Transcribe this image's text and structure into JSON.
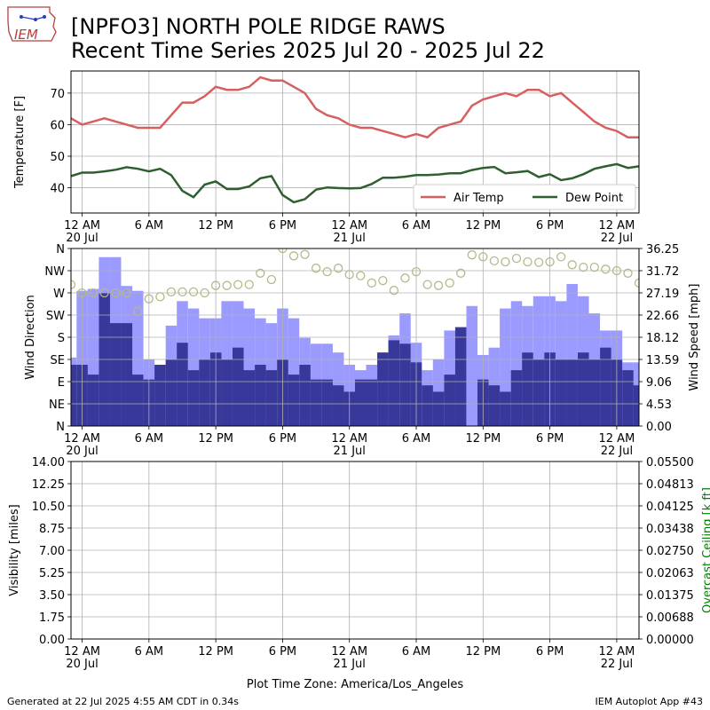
{
  "logo": {
    "text": "IEM"
  },
  "title": {
    "line1": "[NPFO3] NORTH POLE RIDGE RAWS",
    "line2": "Recent Time Series 2025 Jul 20 - 2025 Jul 22"
  },
  "footer": {
    "left": "Generated at 22 Jul 2025 4:55 AM CDT in 0.34s",
    "right": "IEM Autoplot App #43"
  },
  "x_axis": {
    "tick_labels": [
      {
        "hour": 0,
        "l1": "12 AM",
        "l2": "20 Jul"
      },
      {
        "hour": 6,
        "l1": "6 AM",
        "l2": ""
      },
      {
        "hour": 12,
        "l1": "12 PM",
        "l2": ""
      },
      {
        "hour": 18,
        "l1": "6 PM",
        "l2": ""
      },
      {
        "hour": 24,
        "l1": "12 AM",
        "l2": "21 Jul"
      },
      {
        "hour": 30,
        "l1": "6 AM",
        "l2": ""
      },
      {
        "hour": 36,
        "l1": "12 PM",
        "l2": ""
      },
      {
        "hour": 42,
        "l1": "6 PM",
        "l2": ""
      },
      {
        "hour": 48,
        "l1": "12 AM",
        "l2": "22 Jul"
      }
    ],
    "xlim_hours": [
      -1,
      50
    ],
    "timezone_label": "Plot Time Zone: America/Los_Angeles"
  },
  "chart_data": [
    {
      "type": "line",
      "ylabel": "Temperature [F]",
      "ylim": [
        32,
        77
      ],
      "yticks": [
        "40",
        "50",
        "60",
        "70"
      ],
      "ytick_values": [
        40,
        50,
        60,
        70
      ],
      "grid": true,
      "legend_position": "lower-right",
      "x_hours": [
        -1,
        0,
        1,
        2,
        3,
        4,
        5,
        6,
        7,
        8,
        9,
        10,
        11,
        12,
        13,
        14,
        15,
        16,
        17,
        18,
        19,
        20,
        21,
        22,
        23,
        24,
        25,
        26,
        27,
        28,
        29,
        30,
        31,
        32,
        33,
        34,
        35,
        36,
        37,
        38,
        39,
        40,
        41,
        42,
        43,
        44,
        45,
        46,
        47,
        48,
        49,
        50
      ],
      "series": [
        {
          "name": "Air Temp",
          "color": "#d65f5f",
          "values": [
            62,
            60,
            61,
            62,
            61,
            60,
            59,
            59,
            59,
            63,
            67,
            67,
            69,
            72,
            71,
            71,
            72,
            75,
            74,
            74,
            72,
            70,
            65,
            63,
            62,
            60,
            59,
            59,
            58,
            57,
            56,
            57,
            56,
            59,
            60,
            61,
            66,
            68,
            69,
            70,
            69,
            71,
            71,
            69,
            70,
            67,
            64,
            61,
            59,
            58,
            56,
            56
          ]
        },
        {
          "name": "Dew Point",
          "color": "#2f5f30",
          "values": [
            43.7,
            44.8,
            44.8,
            45.2,
            45.7,
            46.5,
            46,
            45.2,
            46,
            44,
            39,
            37,
            41,
            42,
            39.6,
            39.6,
            40.4,
            43,
            43.7,
            37.7,
            35.4,
            36.4,
            39.4,
            40.1,
            39.9,
            39.8,
            39.9,
            41.2,
            43.2,
            43.2,
            43.5,
            44,
            44,
            44.2,
            44.6,
            44.6,
            45.6,
            46.3,
            46.6,
            44.6,
            44.9,
            45.3,
            43.4,
            44.3,
            42.4,
            43,
            44.3,
            46,
            46.8,
            47.5,
            46.3,
            46.8
          ]
        }
      ]
    },
    {
      "type": "bar",
      "ylabel_left": "Wind Direction",
      "ylabel_right": "Wind Speed [mph]",
      "left_ylim": [
        0,
        360
      ],
      "left_ytick_labels": [
        "N",
        "NE",
        "E",
        "SE",
        "S",
        "SW",
        "W",
        "NW",
        "N"
      ],
      "left_ytick_values": [
        0,
        45,
        90,
        135,
        180,
        225,
        270,
        315,
        360
      ],
      "right_ylim": [
        0,
        36.25
      ],
      "right_ytick_labels": [
        "0.00",
        "4.53",
        "9.06",
        "13.59",
        "18.12",
        "22.66",
        "27.19",
        "31.72",
        "36.25"
      ],
      "right_ytick_values": [
        0,
        4.53,
        9.06,
        13.59,
        18.12,
        22.66,
        27.19,
        31.72,
        36.25
      ],
      "grid": true,
      "colors": {
        "gust": "#9b9bff",
        "speed": "#38389a",
        "direction": "#b5b88a"
      },
      "x_hours": [
        -1,
        0,
        1,
        2,
        3,
        4,
        5,
        6,
        7,
        8,
        9,
        10,
        11,
        12,
        13,
        14,
        15,
        16,
        17,
        18,
        19,
        20,
        21,
        22,
        23,
        24,
        25,
        26,
        27,
        28,
        29,
        30,
        31,
        32,
        33,
        34,
        35,
        36,
        37,
        38,
        39,
        40,
        41,
        42,
        43,
        44,
        45,
        46,
        47,
        48,
        49,
        50
      ],
      "gust_mph": [
        14,
        27.6,
        28,
        34.5,
        34.5,
        28.6,
        27.6,
        13.6,
        12.5,
        20.5,
        25.5,
        24,
        22,
        22,
        25.5,
        25.5,
        24,
        22,
        21,
        24,
        22,
        18,
        16.8,
        16.8,
        15,
        12.5,
        11.4,
        12.5,
        15,
        18.5,
        23,
        17,
        11.4,
        13.6,
        19.5,
        0,
        24.5,
        14.5,
        16,
        24,
        25.5,
        24.5,
        26.5,
        26.5,
        25.5,
        29,
        26.5,
        23,
        19.5,
        19.5,
        13,
        13
      ],
      "speed_mph": [
        12.5,
        12.5,
        10.5,
        27.2,
        21,
        21,
        10.5,
        9.5,
        12.5,
        13.6,
        17,
        11.4,
        13.6,
        15,
        13.6,
        16,
        11.4,
        12.5,
        11.4,
        13.6,
        10.5,
        12.5,
        9.5,
        9.5,
        8.3,
        7,
        9.5,
        9.5,
        15,
        17.5,
        16.8,
        13,
        8.3,
        7,
        10.5,
        20.2,
        0,
        9.5,
        8.3,
        7,
        11.4,
        15,
        13.6,
        15,
        13.6,
        13.6,
        15,
        13.6,
        16,
        13.6,
        11.4,
        8.3
      ],
      "direction_deg": [
        287,
        270,
        270,
        270,
        270,
        270,
        233,
        258,
        262,
        272,
        272,
        272,
        270,
        285,
        285,
        287,
        287,
        310,
        297,
        360,
        345,
        348,
        320,
        313,
        320,
        307,
        305,
        290,
        295,
        275,
        300,
        313,
        287,
        285,
        290,
        310,
        347,
        343,
        335,
        333,
        340,
        333,
        332,
        333,
        343,
        327,
        322,
        322,
        318,
        315,
        310,
        290
      ]
    },
    {
      "type": "line",
      "ylabel_left": "Visibility [miles]",
      "ylabel_right": "Overcast Ceiling [k ft]",
      "left_ylim": [
        0,
        14
      ],
      "left_ytick_labels": [
        "0.00",
        "1.75",
        "3.50",
        "5.25",
        "7.00",
        "8.75",
        "10.50",
        "12.25",
        "14.00"
      ],
      "left_ytick_values": [
        0,
        1.75,
        3.5,
        5.25,
        7,
        8.75,
        10.5,
        12.25,
        14
      ],
      "right_ylim": [
        0,
        0.055
      ],
      "right_ytick_labels": [
        "0.00000",
        "0.00688",
        "0.01375",
        "0.02063",
        "0.02750",
        "0.03438",
        "0.04125",
        "0.04813",
        "0.05500"
      ],
      "right_ytick_values": [
        0,
        0.006875,
        0.01375,
        0.020625,
        0.0275,
        0.034375,
        0.04125,
        0.048125,
        0.055
      ],
      "grid": true,
      "colors": {
        "ceiling_label": "#008000"
      }
    }
  ]
}
